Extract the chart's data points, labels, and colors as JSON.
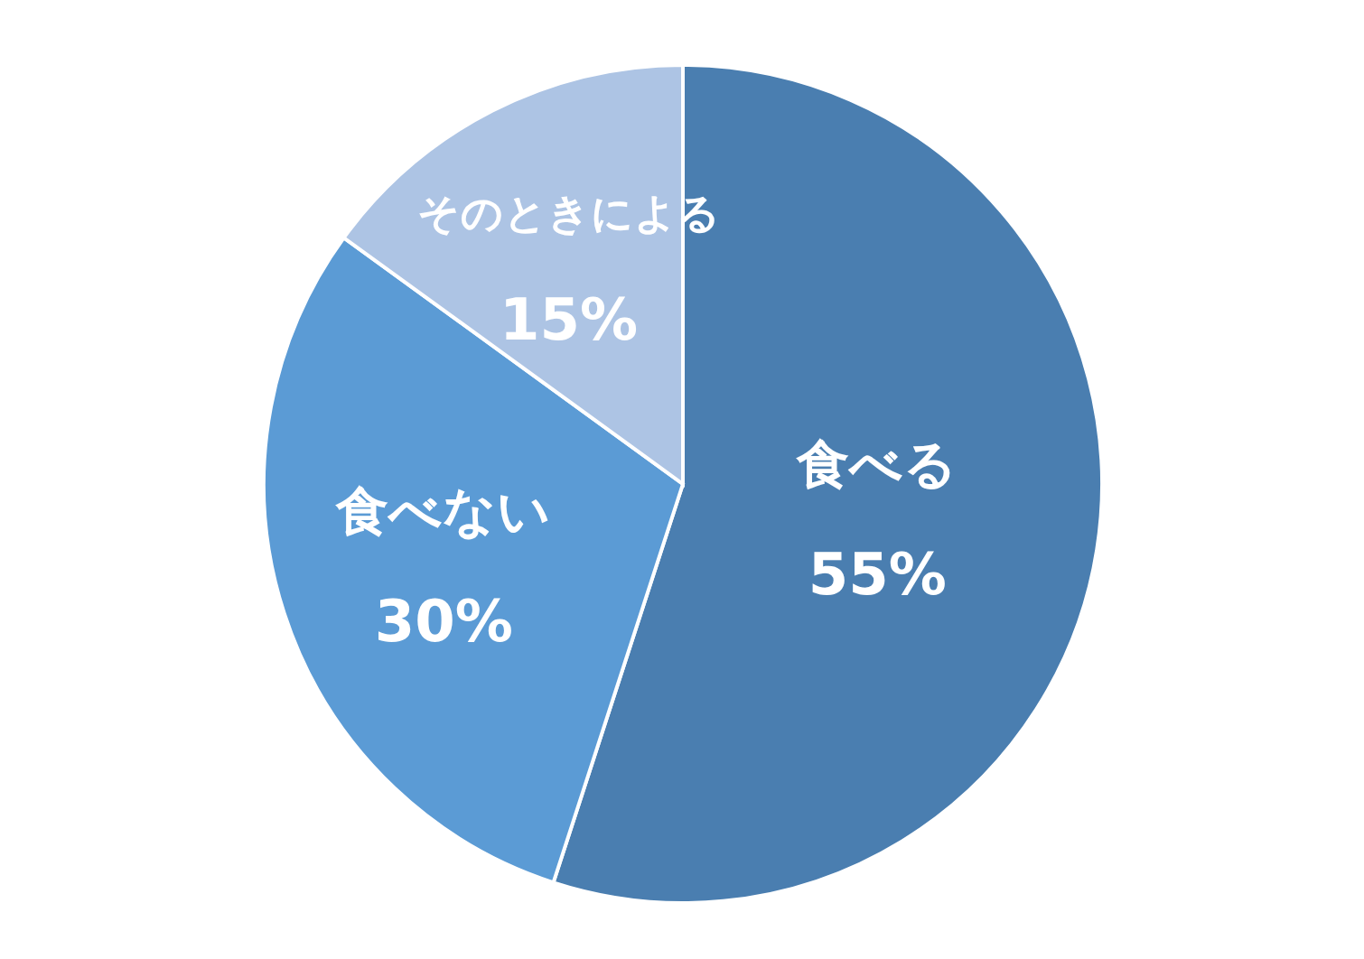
{
  "chart_data": {
    "type": "pie",
    "categories": [
      "食べる",
      "食べない",
      "そのときによる"
    ],
    "values": [
      55,
      30,
      15
    ],
    "value_labels": [
      "55%",
      "30%",
      "15%"
    ],
    "colors": [
      "#4a7eb0",
      "#5b9bd5",
      "#adc4e4"
    ]
  }
}
